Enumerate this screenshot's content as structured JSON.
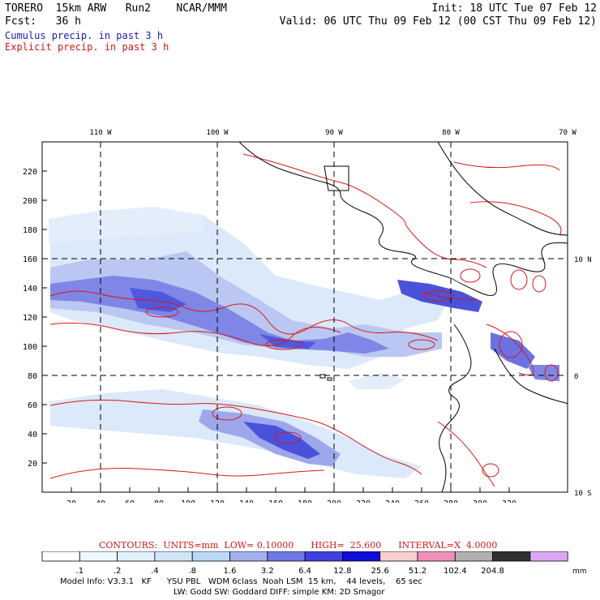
{
  "header": {
    "left_line1": "TORERO  15km ARW   Run2    NCAR/MMM",
    "right_line1": "Init: 18 UTC Tue 07 Feb 12",
    "left_line2": "Fcst:   36 h",
    "right_line2": "Valid: 06 UTC Thu 09 Feb 12 (00 CST Thu 09 Feb 12)",
    "subtitle_cumulus": "Cumulus precip. in past 3 h",
    "subtitle_explicit": "Explicit precip. in past 3 h"
  },
  "map": {
    "top_lon_labels": [
      "110 W",
      "100 W",
      "90 W",
      "80 W",
      "70 W"
    ],
    "right_lat_labels": [
      "10 N",
      "0",
      "10 S"
    ],
    "y_ticks": [
      "220",
      "200",
      "180",
      "160",
      "140",
      "120",
      "100",
      "80",
      "60",
      "40",
      "20"
    ],
    "x_ticks": [
      "20",
      "40",
      "60",
      "80",
      "100",
      "120",
      "140",
      "160",
      "180",
      "200",
      "220",
      "240",
      "260",
      "280",
      "300",
      "320"
    ]
  },
  "contours_caption": "CONTOURS:  UNITS=mm  LOW= 0.10000      HIGH=  25.600      INTERVAL=X  4.0000",
  "colorbar": {
    "labels": [
      ".1",
      ".2",
      ".4",
      ".8",
      "1.6",
      "3.2",
      "6.4",
      "12.8",
      "25.6",
      "51.2",
      "102.4",
      "204.8"
    ],
    "unit": "mm",
    "colors": [
      "#ffffff",
      "#f0f8ff",
      "#e2f0fc",
      "#d2e6fa",
      "#bcd8f6",
      "#a4b0ee",
      "#7078e6",
      "#4040de",
      "#1010d8",
      "#f6d0d0",
      "#f090b8",
      "#b0b0b0",
      "#303030",
      "#dba8f2"
    ]
  },
  "model_info": {
    "line1": "Model Info: V3.3.1   KF      YSU PBL   WDM 6class  Noah LSM  15 km,    44 levels,    65 sec",
    "line2": "LW: Godd SW: Goddard DIFF: simple KM: 2D Smagor"
  }
}
